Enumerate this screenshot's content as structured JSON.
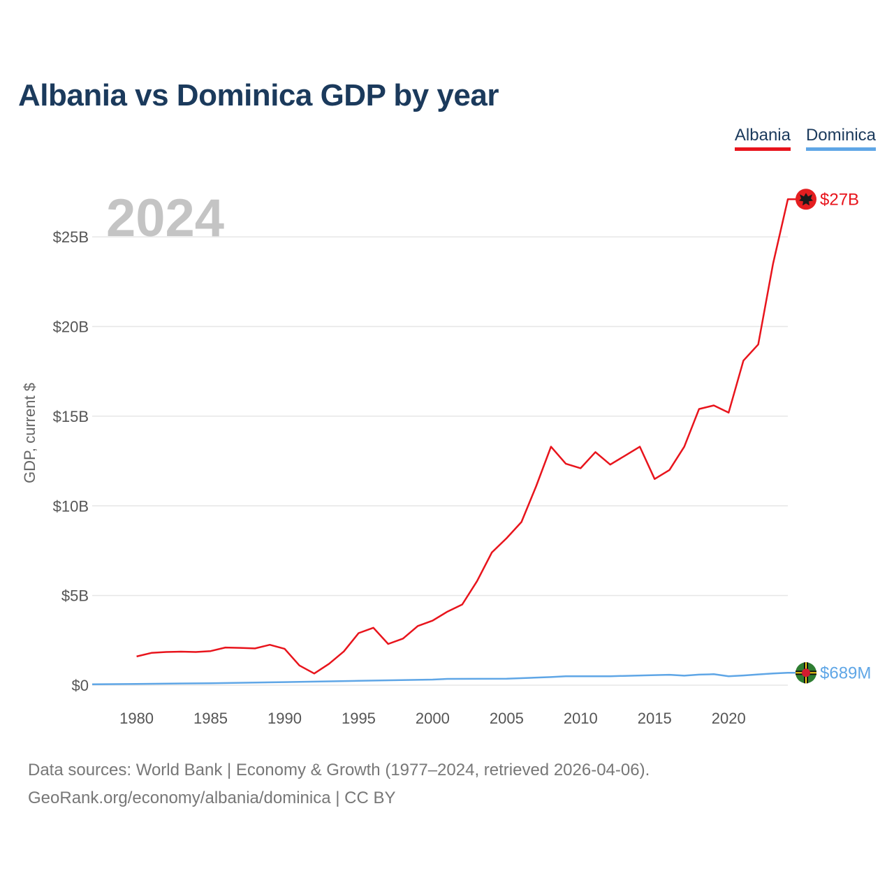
{
  "title": "Albania vs Dominica GDP by year",
  "legend": {
    "albania": "Albania",
    "dominica": "Dominica"
  },
  "colors": {
    "albania": "#e8141c",
    "dominica": "#5fa6e6",
    "title": "#1b3a5c",
    "grid": "#e6e6e6"
  },
  "source_line1": "Data sources: World Bank | Economy & Growth (1977–2024, retrieved 2026-04-06).",
  "source_line2": "GeoRank.org/economy/albania/dominica | CC BY",
  "chart_data": {
    "type": "line",
    "title": "Albania vs Dominica GDP by year",
    "xlabel": "",
    "ylabel": "GDP, current $",
    "year_stamp": "2024",
    "xlim": [
      1977,
      2024
    ],
    "ylim": [
      0,
      27.5
    ],
    "units": "billions USD",
    "yticks": [
      {
        "value": 0,
        "label": "$0"
      },
      {
        "value": 5,
        "label": "$5B"
      },
      {
        "value": 10,
        "label": "$10B"
      },
      {
        "value": 15,
        "label": "$15B"
      },
      {
        "value": 20,
        "label": "$20B"
      },
      {
        "value": 25,
        "label": "$25B"
      }
    ],
    "xticks": [
      1980,
      1985,
      1990,
      1995,
      2000,
      2005,
      2010,
      2015,
      2020
    ],
    "series": [
      {
        "name": "Albania",
        "color": "#e8141c",
        "end_label": "$27B",
        "flag": "albania-flag-icon",
        "x": [
          1980,
          1981,
          1982,
          1983,
          1984,
          1985,
          1986,
          1987,
          1988,
          1989,
          1990,
          1991,
          1992,
          1993,
          1994,
          1995,
          1996,
          1997,
          1998,
          1999,
          2000,
          2001,
          2002,
          2003,
          2004,
          2005,
          2006,
          2007,
          2008,
          2009,
          2010,
          2011,
          2012,
          2013,
          2014,
          2015,
          2016,
          2017,
          2018,
          2019,
          2020,
          2021,
          2022,
          2023,
          2024
        ],
        "values": [
          1.6,
          1.8,
          1.85,
          1.87,
          1.85,
          1.9,
          2.1,
          2.08,
          2.05,
          2.25,
          2.03,
          1.1,
          0.65,
          1.19,
          1.88,
          2.9,
          3.2,
          2.3,
          2.6,
          3.3,
          3.6,
          4.1,
          4.5,
          5.8,
          7.4,
          8.2,
          9.1,
          11.1,
          13.3,
          12.35,
          12.1,
          13.0,
          12.3,
          12.8,
          13.3,
          11.5,
          12.0,
          13.3,
          15.4,
          15.6,
          15.2,
          18.1,
          19.0,
          23.5,
          27.1
        ]
      },
      {
        "name": "Dominica",
        "color": "#5fa6e6",
        "end_label": "$689M",
        "flag": "dominica-flag-icon",
        "x": [
          1977,
          1980,
          1985,
          1990,
          1995,
          2000,
          2001,
          2005,
          2008,
          2009,
          2012,
          2015,
          2016,
          2017,
          2018,
          2019,
          2020,
          2021,
          2022,
          2023,
          2024
        ],
        "values": [
          0.05,
          0.07,
          0.11,
          0.17,
          0.24,
          0.31,
          0.35,
          0.36,
          0.45,
          0.5,
          0.5,
          0.56,
          0.58,
          0.53,
          0.59,
          0.61,
          0.5,
          0.54,
          0.6,
          0.65,
          0.689
        ]
      }
    ]
  }
}
